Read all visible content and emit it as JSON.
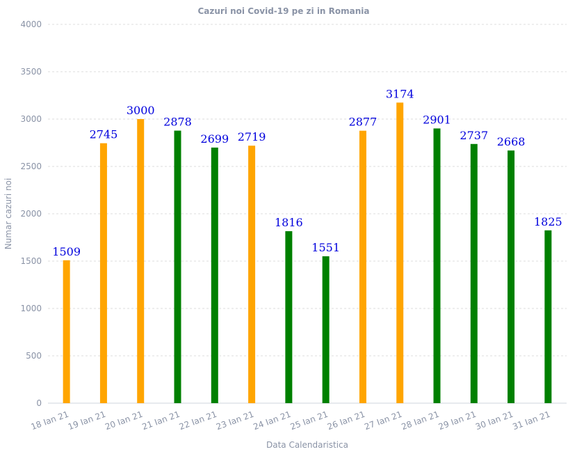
{
  "chart_data": {
    "type": "bar",
    "title": "Cazuri noi Covid-19 pe zi in Romania",
    "xlabel": "Data Calendaristica",
    "ylabel": "Numar cazuri noi",
    "ylim": [
      0,
      4000
    ],
    "yticks": [
      0,
      500,
      1000,
      1500,
      2000,
      2500,
      3000,
      3500,
      4000
    ],
    "grid": true,
    "categories": [
      "18 Ian 21",
      "19 Ian 21",
      "20 Ian 21",
      "21 Ian 21",
      "22 Ian 21",
      "23 Ian 21",
      "24 Ian 21",
      "25 Ian 21",
      "26 Ian 21",
      "27 Ian 21",
      "28 Ian 21",
      "29 Ian 21",
      "30 Ian 21",
      "31 Ian 21"
    ],
    "values": [
      1509,
      2745,
      3000,
      2878,
      2699,
      2719,
      1816,
      1551,
      2877,
      3174,
      2901,
      2737,
      2668,
      1825
    ],
    "colors": [
      "#ffa500",
      "#ffa500",
      "#ffa500",
      "#008000",
      "#008000",
      "#ffa500",
      "#008000",
      "#008000",
      "#ffa500",
      "#ffa500",
      "#008000",
      "#008000",
      "#008000",
      "#008000"
    ]
  }
}
